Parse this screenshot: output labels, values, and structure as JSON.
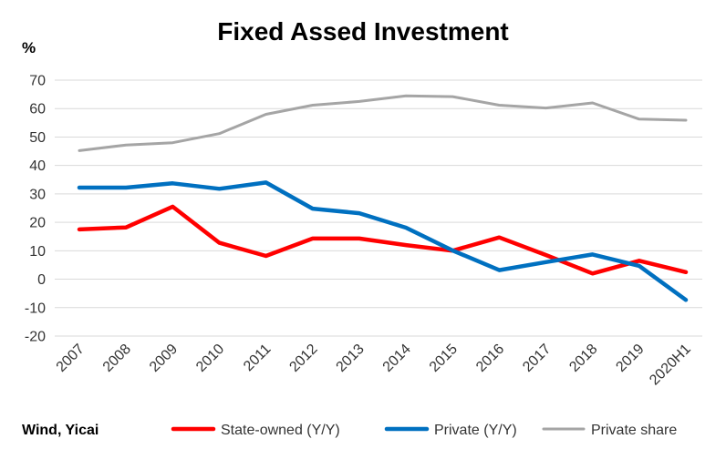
{
  "chart_data": {
    "type": "line",
    "title": "Fixed Assed Investment",
    "ylabel": "%",
    "xlabel": "",
    "categories": [
      "2007",
      "2008",
      "2009",
      "2010",
      "2011",
      "2012",
      "2013",
      "2014",
      "2015",
      "2016",
      "2017",
      "2018",
      "2019",
      "2020H1"
    ],
    "ylim": [
      -20,
      70
    ],
    "yticks": [
      -20,
      -10,
      0,
      10,
      20,
      30,
      40,
      50,
      60,
      70
    ],
    "grid": true,
    "legend_position": "bottom",
    "source": "Wind, Yicai",
    "series": [
      {
        "name": "State-owned (Y/Y)",
        "color": "#ff0000",
        "values": [
          17.5,
          18.2,
          25.5,
          12.8,
          8.2,
          14.3,
          14.3,
          12.0,
          10.0,
          14.7,
          8.5,
          2.0,
          6.5,
          2.5
        ]
      },
      {
        "name": "Private (Y/Y)",
        "color": "#0070c0",
        "values": [
          32.2,
          32.2,
          33.7,
          31.8,
          34.0,
          24.8,
          23.2,
          18.1,
          10.1,
          3.2,
          6.0,
          8.7,
          4.7,
          -7.3
        ]
      },
      {
        "name": "Private share",
        "color": "#a5a5a5",
        "values": [
          45.2,
          47.2,
          48.0,
          51.2,
          58.0,
          61.2,
          62.5,
          64.5,
          64.2,
          61.2,
          60.2,
          62.0,
          56.3,
          55.9
        ]
      }
    ]
  }
}
